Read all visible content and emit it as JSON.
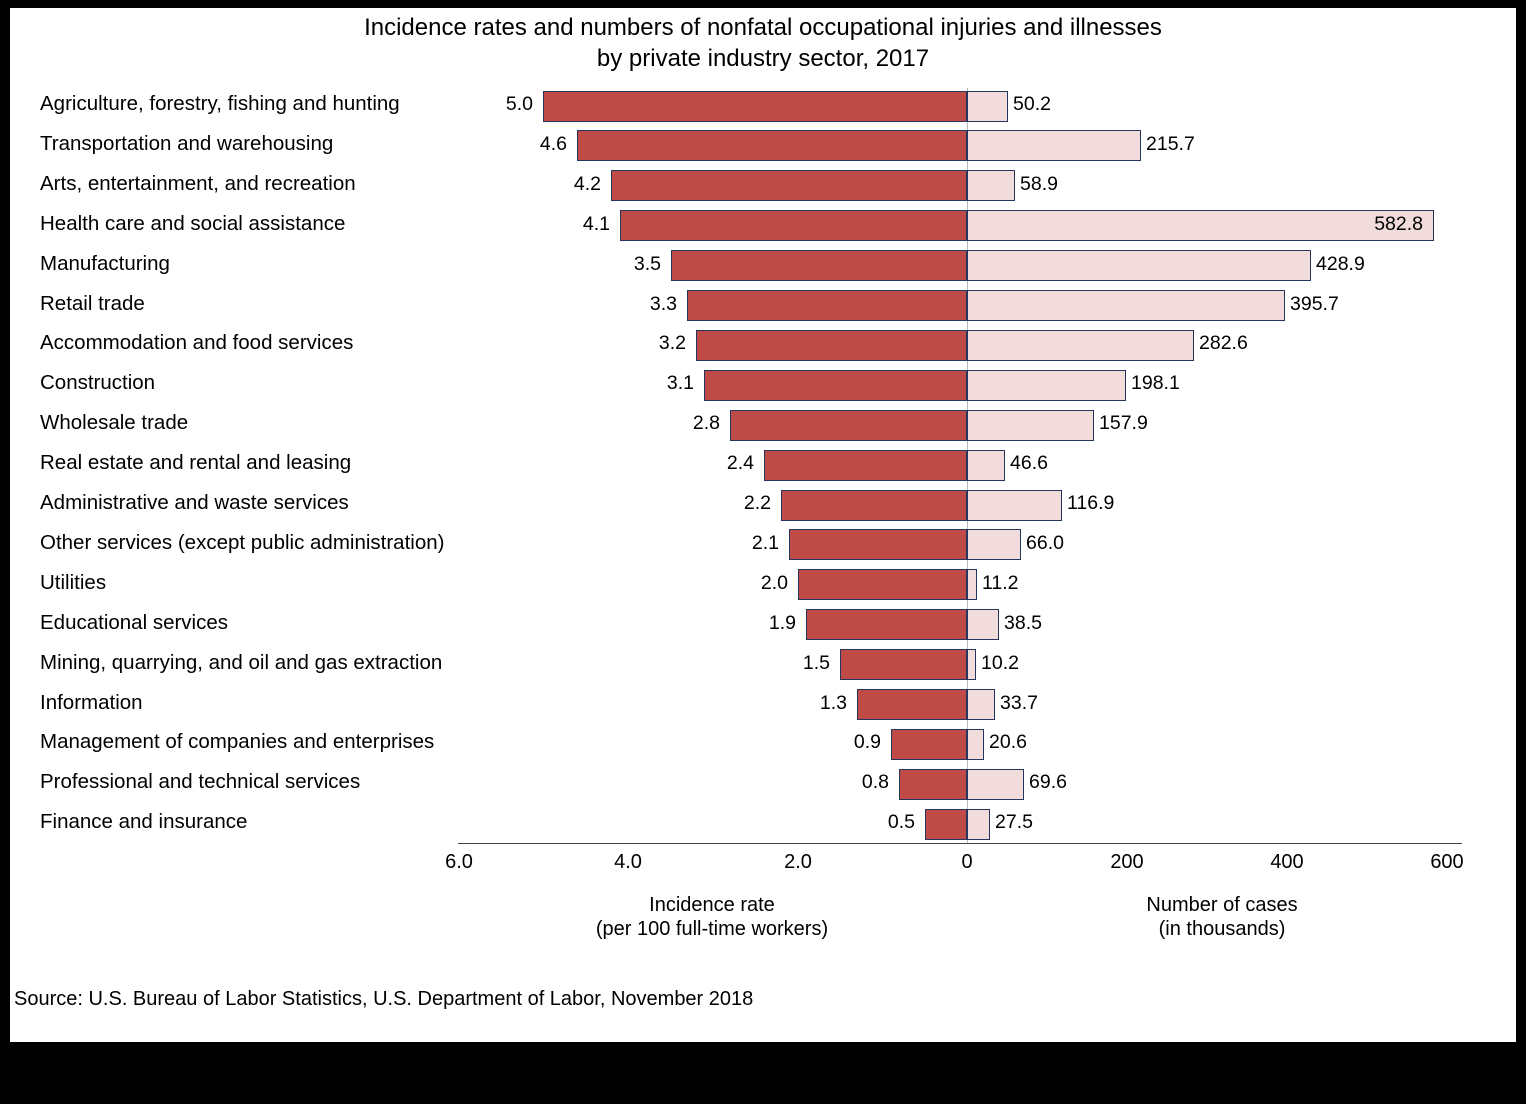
{
  "title_line1": "Incidence rates and numbers of nonfatal occupational injuries and illnesses",
  "title_line2": "by private industry sector, 2017",
  "source": "Source: U.S. Bureau of Labor Statistics, U.S. Department of Labor, November 2018",
  "chart_data": {
    "type": "bar",
    "subtype": "diverging-horizontal",
    "title": "Incidence rates and numbers of nonfatal occupational injuries and illnesses by private industry sector, 2017",
    "categories": [
      "Agriculture, forestry, fishing and hunting",
      "Transportation and warehousing",
      "Arts, entertainment, and recreation",
      "Health care and social assistance",
      "Manufacturing",
      "Retail trade",
      "Accommodation and food services",
      "Construction",
      "Wholesale trade",
      "Real estate and rental and leasing",
      "Administrative and waste services",
      "Other services (except public administration)",
      "Utilities",
      "Educational services",
      "Mining, quarrying, and oil and gas extraction",
      "Information",
      "Management of companies and enterprises",
      "Professional and technical services",
      "Finance and insurance"
    ],
    "series": [
      {
        "name": "Incidence rate (per 100 full-time workers)",
        "side": "left",
        "color": "#bf4b47",
        "values": [
          5.0,
          4.6,
          4.2,
          4.1,
          3.5,
          3.3,
          3.2,
          3.1,
          2.8,
          2.4,
          2.2,
          2.1,
          2.0,
          1.9,
          1.5,
          1.3,
          0.9,
          0.8,
          0.5
        ]
      },
      {
        "name": "Number of cases (in thousands)",
        "side": "right",
        "color": "#f2dcdb",
        "values": [
          50.2,
          215.7,
          58.9,
          582.8,
          428.9,
          395.7,
          282.6,
          198.1,
          157.9,
          46.6,
          116.9,
          66.0,
          11.2,
          38.5,
          10.2,
          33.7,
          20.6,
          69.6,
          27.5
        ]
      }
    ],
    "bar_border_color": "#26355f",
    "zero_line_color": "#b9b9b9",
    "axis_line_color": "#444444",
    "left_xlim": [
      0,
      6.0
    ],
    "right_xlim": [
      0,
      600
    ],
    "left_ticks": [
      {
        "label": "6.0",
        "value": 6.0
      },
      {
        "label": "4.0",
        "value": 4.0
      },
      {
        "label": "2.0",
        "value": 2.0
      },
      {
        "label": "0",
        "value": 0
      }
    ],
    "right_ticks": [
      {
        "label": "200",
        "value": 200
      },
      {
        "label": "400",
        "value": 400
      },
      {
        "label": "600",
        "value": 600
      }
    ],
    "left_axis_label_line1": "Incidence rate",
    "left_axis_label_line2": "(per 100 full-time workers)",
    "right_axis_label_line1": "Number of cases",
    "right_axis_label_line2": "(in thousands)",
    "grid": "off",
    "legend": "none"
  }
}
